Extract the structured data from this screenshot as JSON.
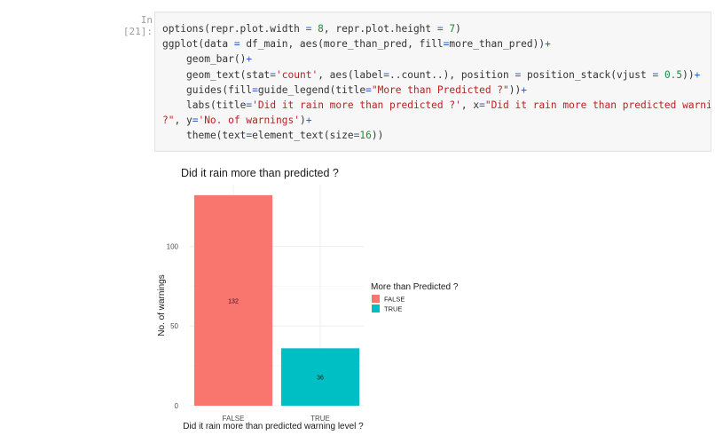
{
  "cell": {
    "prompt": "In [21]:",
    "code_lines": [
      {
        "indent": 0,
        "parts": [
          [
            "t",
            "options(repr.plot.width "
          ],
          [
            "k",
            "="
          ],
          [
            "t",
            " "
          ],
          [
            "n",
            "8"
          ],
          [
            "t",
            ", repr.plot.height "
          ],
          [
            "k",
            "="
          ],
          [
            "t",
            " "
          ],
          [
            "n",
            "7"
          ],
          [
            "t",
            ")"
          ]
        ]
      },
      {
        "indent": 0,
        "parts": [
          [
            "t",
            "ggplot(data "
          ],
          [
            "k",
            "="
          ],
          [
            "t",
            " df_main, aes(more_than_pred, fill"
          ],
          [
            "k",
            "="
          ],
          [
            "t",
            "more_than_pred))"
          ],
          [
            "k",
            "+"
          ]
        ]
      },
      {
        "indent": 1,
        "parts": [
          [
            "t",
            "geom_bar()"
          ],
          [
            "k",
            "+"
          ]
        ]
      },
      {
        "indent": 1,
        "parts": [
          [
            "t",
            "geom_text(stat"
          ],
          [
            "k",
            "="
          ],
          [
            "s",
            "'count'"
          ],
          [
            "t",
            ", aes(label"
          ],
          [
            "k",
            "="
          ],
          [
            "t",
            "..count..), position "
          ],
          [
            "k",
            "="
          ],
          [
            "t",
            " position_stack(vjust "
          ],
          [
            "k",
            "="
          ],
          [
            "t",
            " "
          ],
          [
            "n",
            "0.5"
          ],
          [
            "t",
            "))"
          ],
          [
            "k",
            "+"
          ]
        ]
      },
      {
        "indent": 1,
        "parts": [
          [
            "t",
            "guides(fill"
          ],
          [
            "k",
            "="
          ],
          [
            "t",
            "guide_legend(title"
          ],
          [
            "k",
            "="
          ],
          [
            "s",
            "\"More than Predicted ?\""
          ],
          [
            "t",
            "))"
          ],
          [
            "k",
            "+"
          ]
        ]
      },
      {
        "indent": 1,
        "parts": [
          [
            "t",
            "labs(title"
          ],
          [
            "k",
            "="
          ],
          [
            "s",
            "'Did it rain more than predicted ?'"
          ],
          [
            "t",
            ", x"
          ],
          [
            "k",
            "="
          ],
          [
            "s",
            "\"Did it rain more than predicted warning level"
          ]
        ]
      },
      {
        "indent": 0,
        "parts": [
          [
            "s",
            "?\""
          ],
          [
            "t",
            ", y"
          ],
          [
            "k",
            "="
          ],
          [
            "s",
            "'No. of warnings'"
          ],
          [
            "t",
            ")"
          ],
          [
            "k",
            "+"
          ]
        ]
      },
      {
        "indent": 1,
        "parts": [
          [
            "t",
            "theme(text"
          ],
          [
            "k",
            "="
          ],
          [
            "t",
            "element_text(size"
          ],
          [
            "k",
            "="
          ],
          [
            "n",
            "16"
          ],
          [
            "t",
            "))"
          ]
        ]
      }
    ]
  },
  "chart_data": {
    "type": "bar",
    "title": "Did it rain more than predicted ?",
    "xlabel": "Did it rain more than predicted warning level ?",
    "ylabel": "No. of warnings",
    "categories": [
      "FALSE",
      "TRUE"
    ],
    "values": [
      132,
      36
    ],
    "data_labels": [
      "132",
      "36"
    ],
    "colors": [
      "#f8766d",
      "#00bfc4"
    ],
    "ylim": [
      0,
      138.6
    ],
    "yticks": [
      0,
      50,
      100
    ],
    "ytick_labels": [
      "0",
      "50",
      "100"
    ],
    "grid": true,
    "legend": {
      "title": "More than Predicted ?",
      "placement": "right",
      "entries": [
        "FALSE",
        "TRUE"
      ]
    }
  }
}
